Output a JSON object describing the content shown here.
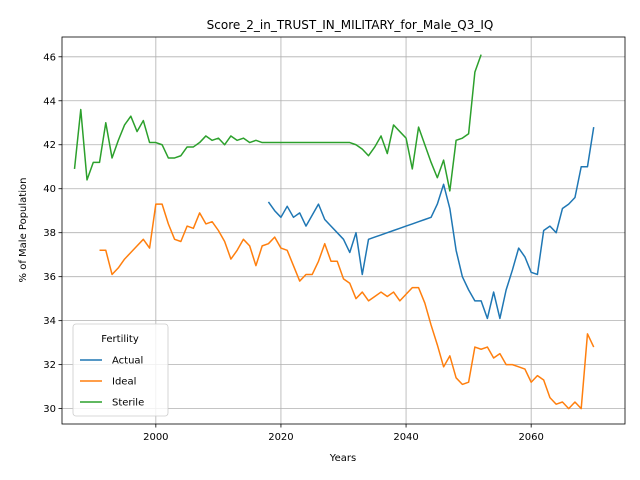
{
  "chart_data": {
    "type": "line",
    "title": "Score_2_in_TRUST_IN_MILITARY_for_Male_Q3_IQ",
    "xlabel": "Years",
    "ylabel": "% of Male Population",
    "xlim": [
      1985,
      2075
    ],
    "ylim": [
      29.3,
      46.9
    ],
    "xticks": [
      2000,
      2020,
      2040,
      2060
    ],
    "yticks": [
      30,
      32,
      34,
      36,
      38,
      40,
      42,
      44,
      46
    ],
    "xtick_labels": [
      "2000",
      "2020",
      "2040",
      "2060"
    ],
    "ytick_labels": [
      "30",
      "32",
      "34",
      "36",
      "38",
      "40",
      "42",
      "44",
      "46"
    ],
    "grid": true,
    "legend": {
      "title": "Fertility",
      "placement": "lower-left"
    },
    "series": [
      {
        "name": "Actual",
        "color": "#1f77b4",
        "x": [
          2018,
          2019,
          2020,
          2021,
          2022,
          2023,
          2024,
          2025,
          2026,
          2027,
          2028,
          2029,
          2030,
          2031,
          2032,
          2033,
          2034,
          2035,
          2036,
          2037,
          2038,
          2039,
          2040,
          2041,
          2042,
          2043,
          2044,
          2045,
          2046,
          2047,
          2048,
          2049,
          2050,
          2051,
          2052,
          2053,
          2054,
          2055,
          2056,
          2057,
          2058,
          2059,
          2060,
          2061,
          2062,
          2063,
          2064,
          2065,
          2066,
          2067,
          2068,
          2069,
          2070
        ],
        "y": [
          39.4,
          39.0,
          38.7,
          39.2,
          38.7,
          38.9,
          38.3,
          38.8,
          39.3,
          38.6,
          38.3,
          38.0,
          37.7,
          37.1,
          38.0,
          36.1,
          37.7,
          37.8,
          37.9,
          38.0,
          38.1,
          38.2,
          38.3,
          38.4,
          38.5,
          38.6,
          38.7,
          39.3,
          40.2,
          39.1,
          37.2,
          36.0,
          35.4,
          34.9,
          34.9,
          34.1,
          35.3,
          34.1,
          35.4,
          36.3,
          37.3,
          36.9,
          36.2,
          36.1,
          38.1,
          38.3,
          38.0,
          39.1,
          39.3,
          39.6,
          41.0,
          41.0,
          42.8
        ]
      },
      {
        "name": "Ideal",
        "color": "#ff7f0e",
        "x": [
          1991,
          1992,
          1993,
          1994,
          1995,
          1996,
          1997,
          1998,
          1999,
          2000,
          2001,
          2002,
          2003,
          2004,
          2005,
          2006,
          2007,
          2008,
          2009,
          2010,
          2011,
          2012,
          2013,
          2014,
          2015,
          2016,
          2017,
          2018,
          2019,
          2020,
          2021,
          2022,
          2023,
          2024,
          2025,
          2026,
          2027,
          2028,
          2029,
          2030,
          2031,
          2032,
          2033,
          2034,
          2035,
          2036,
          2037,
          2038,
          2039,
          2040,
          2041,
          2042,
          2043,
          2044,
          2045,
          2046,
          2047,
          2048,
          2049,
          2050,
          2051,
          2052,
          2053,
          2054,
          2055,
          2056,
          2057,
          2058,
          2059,
          2060,
          2061,
          2062,
          2063,
          2064,
          2065,
          2066,
          2067,
          2068,
          2069,
          2070
        ],
        "y": [
          37.2,
          37.2,
          36.1,
          36.4,
          36.8,
          37.1,
          37.4,
          37.7,
          37.3,
          39.3,
          39.3,
          38.4,
          37.7,
          37.6,
          38.3,
          38.2,
          38.9,
          38.4,
          38.5,
          38.1,
          37.6,
          36.8,
          37.2,
          37.7,
          37.4,
          36.5,
          37.4,
          37.5,
          37.8,
          37.3,
          37.2,
          36.5,
          35.8,
          36.1,
          36.1,
          36.7,
          37.5,
          36.7,
          36.7,
          35.9,
          35.7,
          35.0,
          35.3,
          34.9,
          35.1,
          35.3,
          35.1,
          35.3,
          34.9,
          35.2,
          35.5,
          35.5,
          34.8,
          33.8,
          32.9,
          31.9,
          32.4,
          31.4,
          31.1,
          31.2,
          32.8,
          32.7,
          32.8,
          32.3,
          32.5,
          32.0,
          32.0,
          31.9,
          31.8,
          31.2,
          31.5,
          31.3,
          30.5,
          30.2,
          30.3,
          30.0,
          30.3,
          30.0,
          33.4,
          32.8
        ]
      },
      {
        "name": "Sterile",
        "color": "#2ca02c",
        "x": [
          1987,
          1988,
          1989,
          1990,
          1991,
          1992,
          1993,
          1994,
          1995,
          1996,
          1997,
          1998,
          1999,
          2000,
          2001,
          2002,
          2003,
          2004,
          2005,
          2006,
          2007,
          2008,
          2009,
          2010,
          2011,
          2012,
          2013,
          2014,
          2015,
          2016,
          2017,
          2018,
          2019,
          2020,
          2021,
          2022,
          2023,
          2024,
          2025,
          2026,
          2027,
          2028,
          2029,
          2030,
          2031,
          2032,
          2033,
          2034,
          2035,
          2036,
          2037,
          2038,
          2039,
          2040,
          2041,
          2042,
          2043,
          2044,
          2045,
          2046,
          2047,
          2048,
          2049,
          2050,
          2051,
          2052
        ],
        "y": [
          40.9,
          43.6,
          40.4,
          41.2,
          41.2,
          43.0,
          41.4,
          42.2,
          42.9,
          43.3,
          42.6,
          43.1,
          42.1,
          42.1,
          42.0,
          41.4,
          41.4,
          41.5,
          41.9,
          41.9,
          42.1,
          42.4,
          42.2,
          42.3,
          42.0,
          42.4,
          42.2,
          42.3,
          42.1,
          42.2,
          42.1,
          42.1,
          42.1,
          42.1,
          42.1,
          42.1,
          42.1,
          42.1,
          42.1,
          42.1,
          42.1,
          42.1,
          42.1,
          42.1,
          42.1,
          42.0,
          41.8,
          41.5,
          41.9,
          42.4,
          41.6,
          42.9,
          42.6,
          42.3,
          40.9,
          42.8,
          42.0,
          41.2,
          40.5,
          41.3,
          39.9,
          42.2,
          42.3,
          42.5,
          45.3,
          46.1
        ]
      }
    ]
  }
}
